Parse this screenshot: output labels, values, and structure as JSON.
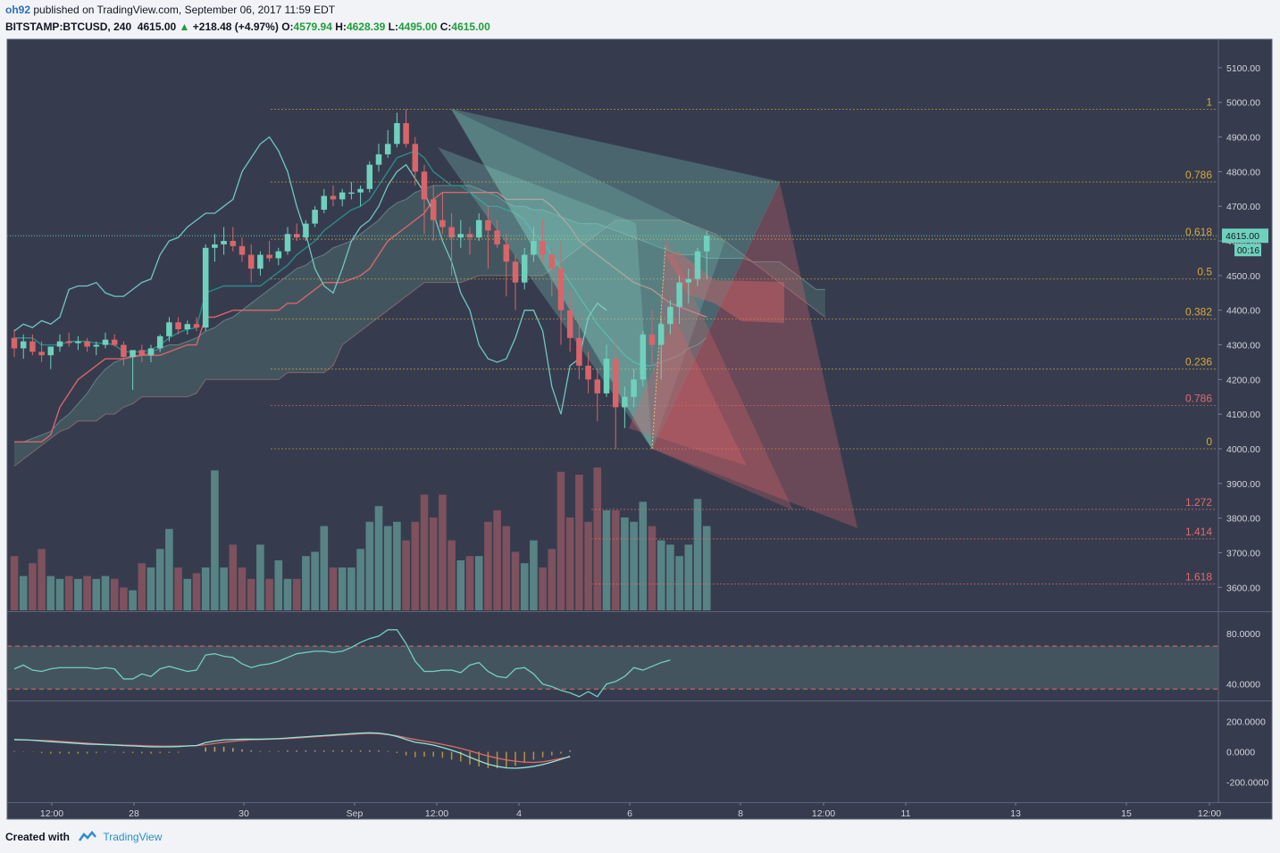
{
  "header": {
    "user": "oh92",
    "published": "published on TradingView.com, September 06, 2017 11:59 EDT",
    "symbol": "BITSTAMP:BTCUSD, 240",
    "last": "4615.00",
    "change_arrow": "▲",
    "change": "+218.48 (+4.97%)",
    "o_label": "O:",
    "o": "4579.94",
    "h_label": "H:",
    "h": "4628.39",
    "l_label": "L:",
    "l": "4495.00",
    "c_label": "C:",
    "c": "4615.00"
  },
  "footer": {
    "created_with": "Created with",
    "brand": "TradingView"
  },
  "colors": {
    "background": "#363c4e",
    "up": "#6fd1bd",
    "down": "#d8656a",
    "fib_gold": "#d8a838",
    "fib_red": "#e06a6a",
    "cloud": "#4d6a6e",
    "conversion": "#2a8a8a",
    "base": "#d8656a",
    "lagging": "#6fc7bf"
  },
  "chart_data": [
    {
      "type": "candlestick",
      "title": "",
      "x_tick_labels": [
        "12:00",
        "28",
        "30",
        "Sep",
        "12:00",
        "4",
        "6",
        "8",
        "12:00",
        "11",
        "13",
        "15",
        "12:00"
      ],
      "y_tick_labels": [
        "5100.00",
        "5000.00",
        "4900.00",
        "4800.00",
        "4700.00",
        "4600.00",
        "4500.00",
        "4400.00",
        "4300.00",
        "4200.00",
        "4100.00",
        "4000.00",
        "3900.00",
        "3800.00",
        "3700.00",
        "3600.00"
      ],
      "ylim": [
        3540,
        5150
      ],
      "last_price_label": "4615.00",
      "countdown_label": "00:16",
      "ohlc": [
        [
          4320,
          4345,
          4265,
          4290
        ],
        [
          4290,
          4330,
          4260,
          4310
        ],
        [
          4310,
          4330,
          4270,
          4280
        ],
        [
          4280,
          4310,
          4250,
          4270
        ],
        [
          4270,
          4290,
          4230,
          4295
        ],
        [
          4295,
          4330,
          4280,
          4310
        ],
        [
          4310,
          4335,
          4295,
          4305
        ],
        [
          4305,
          4325,
          4285,
          4310
        ],
        [
          4310,
          4320,
          4280,
          4295
        ],
        [
          4295,
          4310,
          4270,
          4300
        ],
        [
          4300,
          4335,
          4290,
          4315
        ],
        [
          4315,
          4330,
          4295,
          4300
        ],
        [
          4300,
          4310,
          4240,
          4265
        ],
        [
          4265,
          4280,
          4170,
          4285
        ],
        [
          4285,
          4300,
          4250,
          4270
        ],
        [
          4270,
          4300,
          4250,
          4290
        ],
        [
          4290,
          4330,
          4280,
          4325
        ],
        [
          4325,
          4380,
          4310,
          4365
        ],
        [
          4365,
          4380,
          4330,
          4345
        ],
        [
          4345,
          4370,
          4330,
          4360
        ],
        [
          4360,
          4380,
          4340,
          4350
        ],
        [
          4350,
          4590,
          4340,
          4580
        ],
        [
          4580,
          4620,
          4540,
          4590
        ],
        [
          4590,
          4640,
          4560,
          4600
        ],
        [
          4600,
          4640,
          4570,
          4585
        ],
        [
          4585,
          4610,
          4540,
          4560
        ],
        [
          4560,
          4590,
          4480,
          4520
        ],
        [
          4520,
          4570,
          4500,
          4560
        ],
        [
          4560,
          4600,
          4540,
          4550
        ],
        [
          4550,
          4580,
          4530,
          4570
        ],
        [
          4570,
          4640,
          4560,
          4620
        ],
        [
          4620,
          4650,
          4600,
          4610
        ],
        [
          4610,
          4660,
          4600,
          4650
        ],
        [
          4650,
          4700,
          4640,
          4690
        ],
        [
          4690,
          4750,
          4680,
          4730
        ],
        [
          4730,
          4760,
          4700,
          4720
        ],
        [
          4720,
          4750,
          4700,
          4740
        ],
        [
          4740,
          4770,
          4720,
          4740
        ],
        [
          4740,
          4760,
          4700,
          4750
        ],
        [
          4750,
          4830,
          4740,
          4820
        ],
        [
          4820,
          4880,
          4800,
          4850
        ],
        [
          4850,
          4920,
          4840,
          4880
        ],
        [
          4880,
          4970,
          4870,
          4940
        ],
        [
          4940,
          4980,
          4870,
          4880
        ],
        [
          4880,
          4900,
          4760,
          4800
        ],
        [
          4800,
          4820,
          4620,
          4720
        ],
        [
          4720,
          4760,
          4600,
          4660
        ],
        [
          4660,
          4740,
          4620,
          4640
        ],
        [
          4640,
          4680,
          4500,
          4610
        ],
        [
          4610,
          4660,
          4580,
          4620
        ],
        [
          4620,
          4640,
          4560,
          4610
        ],
        [
          4610,
          4680,
          4600,
          4660
        ],
        [
          4660,
          4700,
          4520,
          4630
        ],
        [
          4630,
          4660,
          4580,
          4590
        ],
        [
          4590,
          4620,
          4440,
          4540
        ],
        [
          4540,
          4560,
          4400,
          4480
        ],
        [
          4480,
          4580,
          4460,
          4560
        ],
        [
          4560,
          4640,
          4540,
          4600
        ],
        [
          4600,
          4660,
          4540,
          4560
        ],
        [
          4560,
          4580,
          4440,
          4520
        ],
        [
          4520,
          4600,
          4300,
          4400
        ],
        [
          4400,
          4460,
          4280,
          4320
        ],
        [
          4320,
          4380,
          4200,
          4240
        ],
        [
          4240,
          4280,
          4160,
          4200
        ],
        [
          4200,
          4230,
          4080,
          4160
        ],
        [
          4160,
          4300,
          4150,
          4260
        ],
        [
          4260,
          4320,
          4000,
          4120
        ],
        [
          4120,
          4180,
          4060,
          4150
        ],
        [
          4150,
          4230,
          4120,
          4200
        ],
        [
          4200,
          4340,
          4180,
          4330
        ],
        [
          4330,
          4400,
          4240,
          4300
        ],
        [
          4300,
          4380,
          4200,
          4360
        ],
        [
          4360,
          4430,
          4330,
          4410
        ],
        [
          4410,
          4500,
          4360,
          4480
        ],
        [
          4480,
          4520,
          4420,
          4490
        ],
        [
          4490,
          4580,
          4470,
          4570
        ],
        [
          4570,
          4630,
          4490,
          4615
        ]
      ],
      "volume_relative": [
        0.38,
        0.24,
        0.33,
        0.43,
        0.24,
        0.22,
        0.24,
        0.22,
        0.24,
        0.22,
        0.24,
        0.22,
        0.16,
        0.14,
        0.33,
        0.3,
        0.43,
        0.57,
        0.3,
        0.22,
        0.26,
        0.3,
        0.98,
        0.3,
        0.46,
        0.3,
        0.22,
        0.46,
        0.22,
        0.35,
        0.22,
        0.22,
        0.38,
        0.41,
        0.59,
        0.3,
        0.3,
        0.3,
        0.43,
        0.62,
        0.73,
        0.59,
        0.62,
        0.49,
        0.62,
        0.81,
        0.65,
        0.81,
        0.49,
        0.35,
        0.38,
        0.38,
        0.62,
        0.7,
        0.59,
        0.41,
        0.33,
        0.49,
        0.3,
        0.43,
        0.97,
        0.65,
        0.95,
        0.62,
        1.0,
        0.7,
        0.7,
        0.65,
        0.62,
        0.76,
        0.59,
        0.49,
        0.46,
        0.38,
        0.46,
        0.78,
        0.59
      ],
      "ichimoku": {
        "conversion": [
          4320,
          4320,
          4320,
          4300,
          4300,
          4300,
          4310,
          4310,
          4310,
          4305,
          4305,
          4300,
          4280,
          4280,
          4280,
          4285,
          4300,
          4320,
          4335,
          4345,
          4350,
          4450,
          4460,
          4470,
          4470,
          4470,
          4470,
          4470,
          4490,
          4510,
          4530,
          4560,
          4580,
          4600,
          4630,
          4650,
          4670,
          4690,
          4700,
          4720,
          4760,
          4800,
          4840,
          4850,
          4860,
          4840,
          4800,
          4780,
          4760,
          4760,
          4740,
          4720,
          4700,
          4700,
          4690,
          4680,
          4660,
          4620,
          4600,
          4560,
          4520,
          4480,
          4440,
          4400,
          4360,
          4330,
          4300,
          4270,
          4250,
          4240,
          4240,
          4250,
          4260,
          4270,
          4290,
          4300,
          4320
        ],
        "base": [
          4020,
          4020,
          4020,
          4020,
          4040,
          4120,
          4160,
          4200,
          4220,
          4240,
          4260,
          4260,
          4260,
          4265,
          4270,
          4270,
          4270,
          4280,
          4290,
          4300,
          4300,
          4380,
          4380,
          4390,
          4400,
          4400,
          4400,
          4400,
          4400,
          4400,
          4420,
          4420,
          4440,
          4460,
          4480,
          4480,
          4480,
          4490,
          4500,
          4520,
          4560,
          4600,
          4620,
          4640,
          4660,
          4680,
          4720,
          4740,
          4740,
          4740,
          4740,
          4740,
          4740,
          4740,
          4720,
          4720,
          4720,
          4720,
          4720,
          4700,
          4670,
          4640,
          4600,
          4580,
          4560,
          4540,
          4520,
          4500,
          4480,
          4470,
          4460,
          4440,
          4420,
          4410,
          4400,
          4390,
          4380
        ],
        "span_a": [
          4020,
          4020,
          4030,
          4040,
          4050,
          4080,
          4100,
          4130,
          4160,
          4200,
          4230,
          4250,
          4260,
          4270,
          4270,
          4280,
          4290,
          4300,
          4300,
          4310,
          4320,
          4340,
          4350,
          4370,
          4380,
          4400,
          4420,
          4440,
          4460,
          4480,
          4500,
          4520,
          4530,
          4550,
          4560,
          4580,
          4590,
          4600,
          4620,
          4640,
          4660,
          4690,
          4710,
          4720,
          4740,
          4750,
          4760,
          4760,
          4760,
          4760,
          4760,
          4750,
          4740,
          4730,
          4710,
          4700,
          4700,
          4690,
          4690,
          4680,
          4670,
          4660,
          4650,
          4650,
          4650,
          4640,
          4630,
          4620,
          4610,
          4600,
          4590,
          4580,
          4570,
          4560,
          4560,
          4560,
          4550,
          4550,
          4550,
          4550,
          4550,
          4540,
          4540,
          4540,
          4540,
          4520,
          4500,
          4480,
          4460,
          4460
        ],
        "span_b": [
          3950,
          3970,
          3990,
          4010,
          4030,
          4050,
          4060,
          4080,
          4080,
          4080,
          4100,
          4100,
          4120,
          4130,
          4150,
          4150,
          4150,
          4150,
          4150,
          4150,
          4160,
          4200,
          4200,
          4200,
          4200,
          4200,
          4200,
          4200,
          4200,
          4200,
          4220,
          4220,
          4220,
          4220,
          4220,
          4240,
          4300,
          4320,
          4340,
          4360,
          4380,
          4400,
          4420,
          4440,
          4460,
          4480,
          4480,
          4480,
          4480,
          4480,
          4490,
          4500,
          4500,
          4500,
          4500,
          4500,
          4500,
          4500,
          4500,
          4520,
          4540,
          4560,
          4580,
          4600,
          4620,
          4640,
          4660,
          4660,
          4660,
          4660,
          4660,
          4660,
          4660,
          4660,
          4650,
          4640,
          4630,
          4620,
          4600,
          4580,
          4560,
          4540,
          4520,
          4500,
          4480,
          4460,
          4440,
          4420,
          4400,
          4380
        ],
        "lagging": [
          4340,
          4360,
          4350,
          4370,
          4360,
          4380,
          4460,
          4470,
          4470,
          4480,
          4450,
          4440,
          4440,
          4460,
          4480,
          4490,
          4560,
          4600,
          4610,
          4640,
          4660,
          4680,
          4680,
          4700,
          4720,
          4800,
          4840,
          4880,
          4900,
          4860,
          4800,
          4700,
          4620,
          4520,
          4470,
          4450,
          4520,
          4600,
          4640,
          4660,
          4700,
          4760,
          4800,
          4820,
          4780,
          4740,
          4680,
          4600,
          4540,
          4450,
          4400,
          4300,
          4260,
          4250,
          4260,
          4320,
          4400,
          4400,
          4340,
          4180,
          4100,
          4240,
          4260,
          4380,
          4420,
          4400
        ]
      },
      "fib_retracement": [
        {
          "label": "1",
          "price": 4980,
          "color": "gold"
        },
        {
          "label": "0.786",
          "price": 4770,
          "color": "gold"
        },
        {
          "label": "0.618",
          "price": 4605,
          "color": "gold"
        },
        {
          "label": "0.5",
          "price": 4490,
          "color": "gold"
        },
        {
          "label": "0.382",
          "price": 4375,
          "color": "gold"
        },
        {
          "label": "0.236",
          "price": 4230,
          "color": "gold"
        },
        {
          "label": "0.786",
          "price": 4125,
          "color": "red"
        },
        {
          "label": "0",
          "price": 4000,
          "color": "gold"
        },
        {
          "label": "1.272",
          "price": 3825,
          "color": "red"
        },
        {
          "label": "1.414",
          "price": 3740,
          "color": "red"
        },
        {
          "label": "1.618",
          "price": 3610,
          "color": "red"
        }
      ],
      "harmonic_pattern": {
        "X": [
          48,
          4980
        ],
        "A": [
          70,
          4000
        ],
        "B": [
          84,
          4770
        ],
        "C": [
          78,
          4600
        ]
      }
    },
    {
      "type": "line",
      "title": "",
      "y_tick_labels": [
        "80.0000",
        "40.0000"
      ],
      "ylim": [
        27,
        97
      ],
      "bands": [
        70,
        36
      ],
      "values": [
        52,
        55,
        51,
        50,
        52,
        53,
        53,
        53,
        53,
        52,
        53,
        52,
        44,
        44,
        48,
        46,
        52,
        54,
        52,
        50,
        51,
        63,
        64,
        62,
        61,
        56,
        53,
        55,
        56,
        58,
        61,
        64,
        65,
        66,
        66,
        65,
        66,
        69,
        73,
        76,
        78,
        83,
        83,
        72,
        58,
        50,
        50,
        51,
        51,
        49,
        55,
        57,
        50,
        46,
        45,
        52,
        53,
        48,
        40,
        38,
        35,
        33,
        30,
        34,
        30,
        40,
        42,
        46,
        53,
        51,
        54,
        57,
        59
      ]
    },
    {
      "type": "line",
      "title": "",
      "y_tick_labels": [
        "200.0000",
        "0.0000",
        "-200.0000"
      ],
      "ylim": [
        -330,
        330
      ],
      "macd": [
        80,
        78,
        75,
        70,
        66,
        62,
        58,
        54,
        50,
        48,
        46,
        44,
        40,
        38,
        35,
        32,
        32,
        32,
        34,
        38,
        40,
        60,
        70,
        78,
        80,
        82,
        82,
        82,
        84,
        86,
        90,
        94,
        98,
        102,
        106,
        110,
        114,
        118,
        122,
        124,
        122,
        114,
        100,
        80,
        62,
        54,
        44,
        28,
        10,
        -10,
        -36,
        -60,
        -82,
        -96,
        -106,
        -108,
        -104,
        -96,
        -84,
        -68,
        -50,
        -30
      ],
      "signal": [
        78,
        77,
        76,
        74,
        72,
        68,
        64,
        60,
        56,
        52,
        48,
        46,
        44,
        42,
        40,
        38,
        36,
        36,
        37,
        38,
        40,
        46,
        54,
        62,
        68,
        74,
        78,
        80,
        82,
        84,
        86,
        90,
        94,
        98,
        102,
        106,
        110,
        114,
        118,
        120,
        118,
        112,
        104,
        92,
        80,
        70,
        60,
        48,
        36,
        22,
        6,
        -12,
        -28,
        -42,
        -54,
        -62,
        -68,
        -70,
        -66,
        -56,
        -44,
        -34
      ]
    }
  ]
}
